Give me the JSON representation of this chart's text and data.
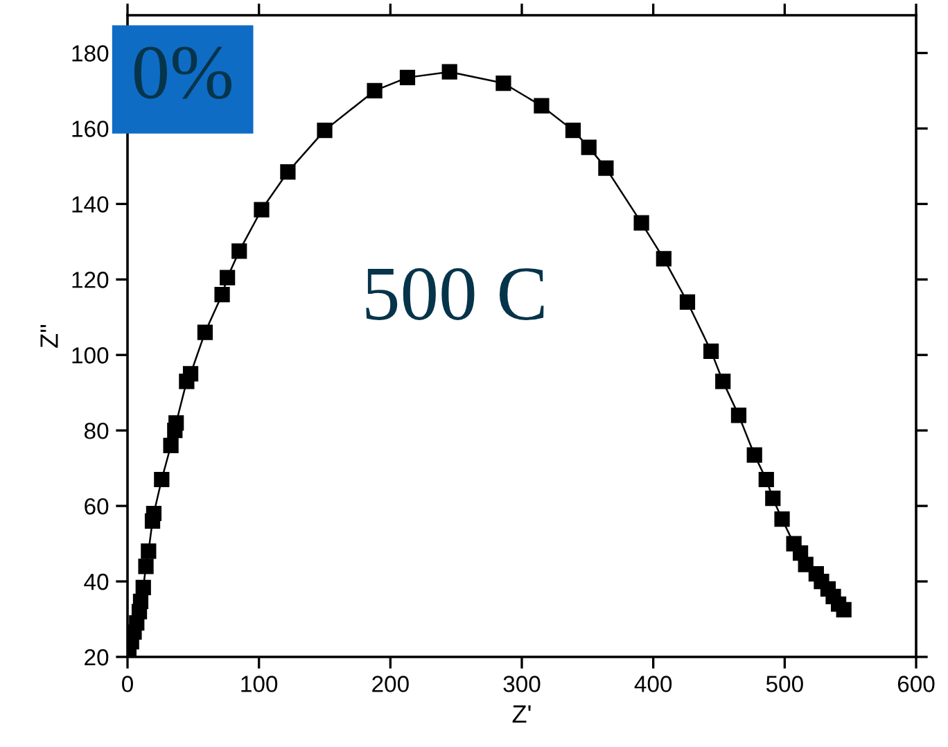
{
  "chart_data": {
    "type": "line",
    "xlabel": "Z'",
    "ylabel": "Z''",
    "annotations": [
      "0%",
      "500 C"
    ],
    "xlim": [
      0,
      600
    ],
    "xticks": [
      0,
      100,
      200,
      300,
      400,
      500,
      600
    ],
    "ylim": [
      20,
      190
    ],
    "yticks": [
      20,
      40,
      60,
      80,
      100,
      120,
      140,
      160,
      180
    ],
    "marker": "square",
    "line_style": "solid",
    "grid": false,
    "legend": false,
    "series": [
      {
        "color": "#000000",
        "x": [
          1,
          3,
          5,
          7,
          9,
          10,
          12,
          14,
          16,
          19,
          20,
          26,
          33,
          36,
          37,
          45,
          48,
          59,
          72,
          76,
          85,
          102,
          122,
          150,
          188,
          213,
          245,
          286,
          315,
          339,
          351,
          364,
          391,
          408,
          426,
          444,
          453,
          465,
          477,
          486,
          491,
          498,
          507,
          512,
          516,
          524,
          528,
          533,
          537,
          541,
          545
        ],
        "values": [
          21.5,
          24,
          26.6,
          29,
          32,
          34.7,
          38.4,
          44,
          48,
          56,
          58,
          67,
          76,
          80,
          82,
          93,
          95,
          106,
          116,
          120.5,
          127.5,
          138.5,
          148.5,
          159.5,
          170,
          173.5,
          175,
          172,
          166,
          159.5,
          155,
          149.5,
          135,
          125.5,
          114,
          101,
          93,
          84,
          73.5,
          67,
          62,
          56.5,
          50,
          47.5,
          44.5,
          42,
          40,
          38,
          36,
          34,
          32.5
        ]
      }
    ]
  }
}
